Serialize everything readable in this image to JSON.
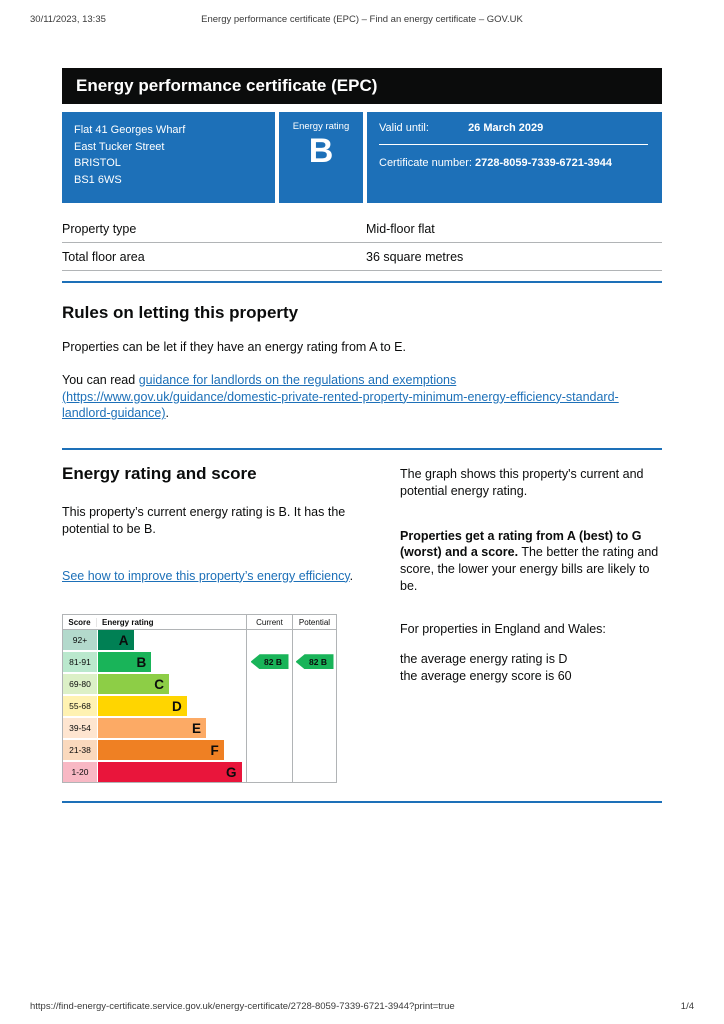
{
  "print_header": {
    "datetime": "30/11/2023, 13:35",
    "title": "Energy performance certificate (EPC) – Find an energy certificate – GOV.UK"
  },
  "banner": {
    "title": "Energy performance certificate (EPC)"
  },
  "summary": {
    "address_lines": [
      "Flat 41 Georges Wharf",
      "East Tucker Street",
      "BRISTOL",
      "BS1 6WS"
    ],
    "energy_rating_label": "Energy rating",
    "energy_rating": "B",
    "valid_until_label": "Valid until:",
    "valid_until": "26 March 2029",
    "certificate_number_label": "Certificate number:",
    "certificate_number": "2728-8059-7339-6721-3944"
  },
  "property_details": {
    "rows": [
      {
        "label": "Property type",
        "value": "Mid-floor flat"
      },
      {
        "label": "Total floor area",
        "value": "36 square metres"
      }
    ]
  },
  "letting_rules": {
    "heading": "Rules on letting this property",
    "paragraph1": "Properties can be let if they have an energy rating from A to E.",
    "paragraph2_prefix": "You can read ",
    "link_text": "guidance for landlords on the regulations and exemptions (https://www.gov.uk/guidance/domestic-private-rented-property-minimum-energy-efficiency-standard-landlord-guidance)",
    "paragraph2_suffix": "."
  },
  "rating_section": {
    "heading": "Energy rating and score",
    "current_text": "This property’s current energy rating is B. It has the potential to be B.",
    "improve_link": "See how to improve this property’s energy efficiency",
    "improve_suffix": ".",
    "right": {
      "p1": "The graph shows this property's current and potential energy rating.",
      "p2_bold": "Properties get a rating from A (best) to G (worst) and a score.",
      "p2_rest": " The better the rating and score, the lower your energy bills are likely to be.",
      "p3": "For properties in England and Wales:",
      "p4": "the average energy rating is D",
      "p5": "the average energy score is 60"
    }
  },
  "chart_data": {
    "type": "bar",
    "title": "Energy rating bands",
    "columns": [
      "Score",
      "Energy rating",
      "Current",
      "Potential"
    ],
    "bands": [
      {
        "score_range": "92+",
        "letter": "A",
        "color": "#008054",
        "tint": "#b3d9cc",
        "width_pct": 24
      },
      {
        "score_range": "81-91",
        "letter": "B",
        "color": "#19b459",
        "tint": "#bae8cd",
        "width_pct": 36
      },
      {
        "score_range": "69-80",
        "letter": "C",
        "color": "#8dce46",
        "tint": "#dcf0c7",
        "width_pct": 48
      },
      {
        "score_range": "55-68",
        "letter": "D",
        "color": "#ffd500",
        "tint": "#fff2b2",
        "width_pct": 60
      },
      {
        "score_range": "39-54",
        "letter": "E",
        "color": "#fcaa65",
        "tint": "#fee5d0",
        "width_pct": 73
      },
      {
        "score_range": "21-38",
        "letter": "F",
        "color": "#ef8023",
        "tint": "#fad9bd",
        "width_pct": 85
      },
      {
        "score_range": "1-20",
        "letter": "G",
        "color": "#e9153b",
        "tint": "#f8b8c4",
        "width_pct": 97
      }
    ],
    "current": {
      "label": "82 B",
      "band": "B",
      "row_index": 1
    },
    "potential": {
      "label": "82 B",
      "band": "B",
      "row_index": 1
    },
    "marker_color": "#19b459",
    "accent_color": "#1d70b8"
  },
  "footer": {
    "url": "https://find-energy-certificate.service.gov.uk/energy-certificate/2728-8059-7339-6721-3944?print=true",
    "page": "1/4"
  }
}
